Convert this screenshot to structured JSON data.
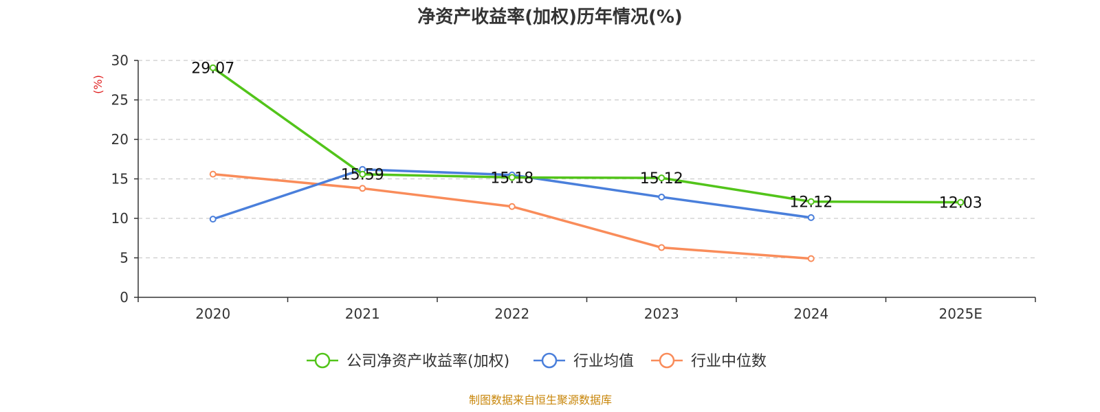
{
  "chart_data": {
    "type": "line",
    "title": "净资产收益率(加权)历年情况(%)",
    "ylabel": "(%)",
    "xlabel": "",
    "categories": [
      "2020",
      "2021",
      "2022",
      "2023",
      "2024",
      "2025E"
    ],
    "ylim": [
      0,
      30
    ],
    "yticks": [
      0,
      5,
      10,
      15,
      20,
      25,
      30
    ],
    "grid": true,
    "legend_position": "bottom-center",
    "series": [
      {
        "name": "公司净资产收益率(加权)",
        "color": "#52c41a",
        "values": [
          29.07,
          15.59,
          15.18,
          15.12,
          12.12,
          12.03
        ],
        "labels": [
          "29.07",
          "15.59",
          "15.18",
          "15.12",
          "12.12",
          "12.03"
        ]
      },
      {
        "name": "行业均值",
        "color": "#4a7fdb",
        "values": [
          9.9,
          16.2,
          15.5,
          12.7,
          10.1,
          null
        ]
      },
      {
        "name": "行业中位数",
        "color": "#f98c5a",
        "values": [
          15.6,
          13.8,
          11.5,
          6.3,
          4.9,
          null
        ]
      }
    ]
  },
  "source": {
    "text": "制图数据来自恒生聚源数据库",
    "color": "#c8860a"
  },
  "ylabel_color": "#e02020"
}
